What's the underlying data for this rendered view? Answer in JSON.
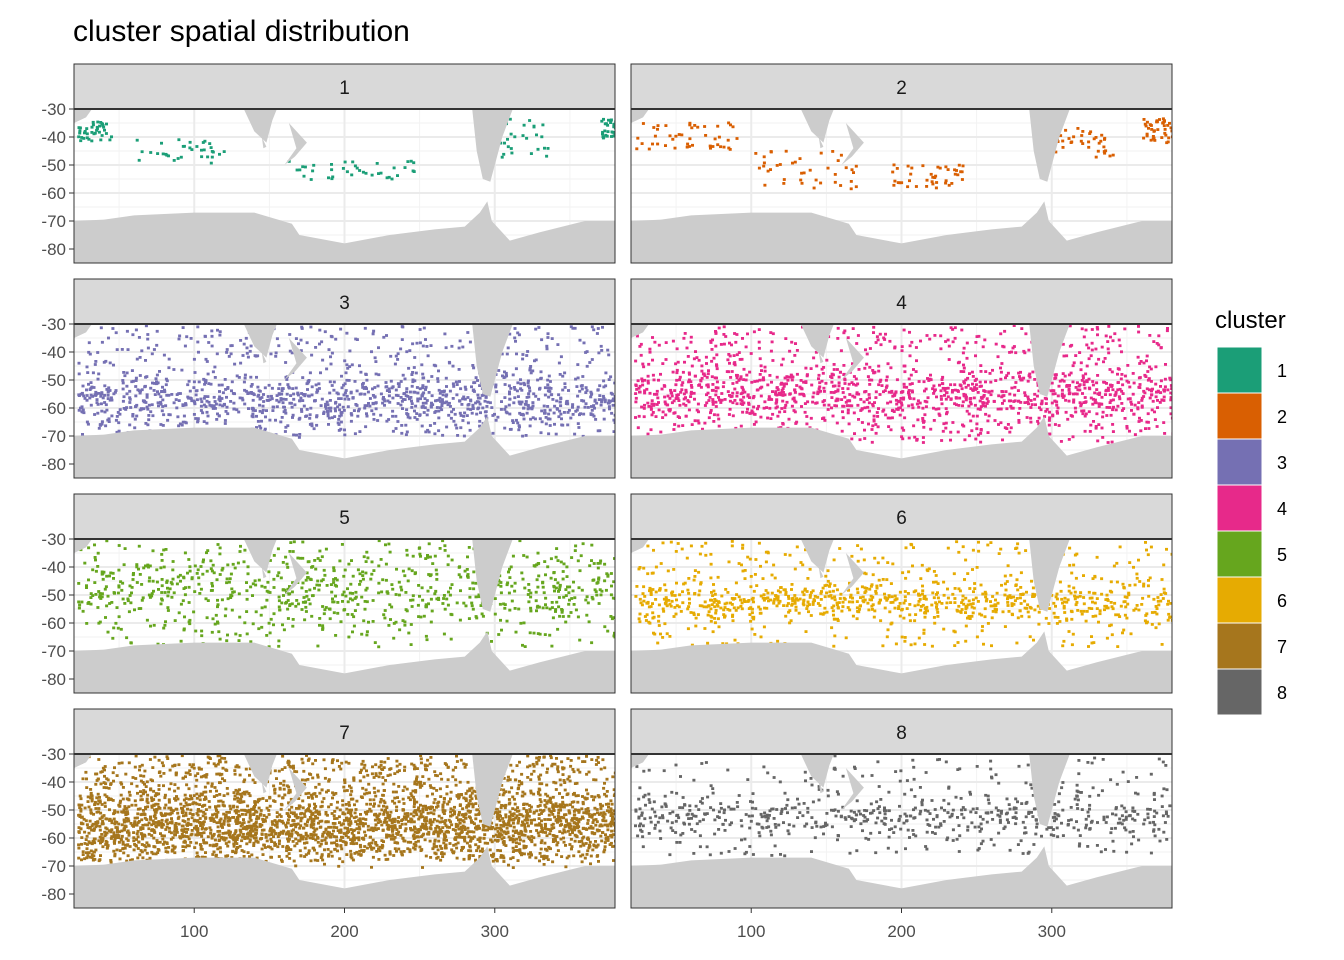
{
  "chart_data": {
    "type": "heatmap",
    "title": "cluster spatial distribution",
    "xlabel": "",
    "ylabel": "",
    "xlim": [
      20,
      380
    ],
    "ylim": [
      -85,
      -30
    ],
    "x_ticks": [
      "100",
      "200",
      "300"
    ],
    "y_ticks": [
      "-30",
      "-40",
      "-50",
      "-60",
      "-70",
      "-80"
    ],
    "grid": true,
    "legend": {
      "title": "cluster",
      "position": "right"
    },
    "facets": [
      {
        "label": "1",
        "color": "#1B9E77"
      },
      {
        "label": "2",
        "color": "#D95F02"
      },
      {
        "label": "3",
        "color": "#7570B3"
      },
      {
        "label": "4",
        "color": "#E7298A"
      },
      {
        "label": "5",
        "color": "#66A61E"
      },
      {
        "label": "6",
        "color": "#E6AB02"
      },
      {
        "label": "7",
        "color": "#A6761D"
      },
      {
        "label": "8",
        "color": "#666666"
      }
    ],
    "land_color": "#CCCCCC",
    "strip_color": "#D9D9D9"
  }
}
